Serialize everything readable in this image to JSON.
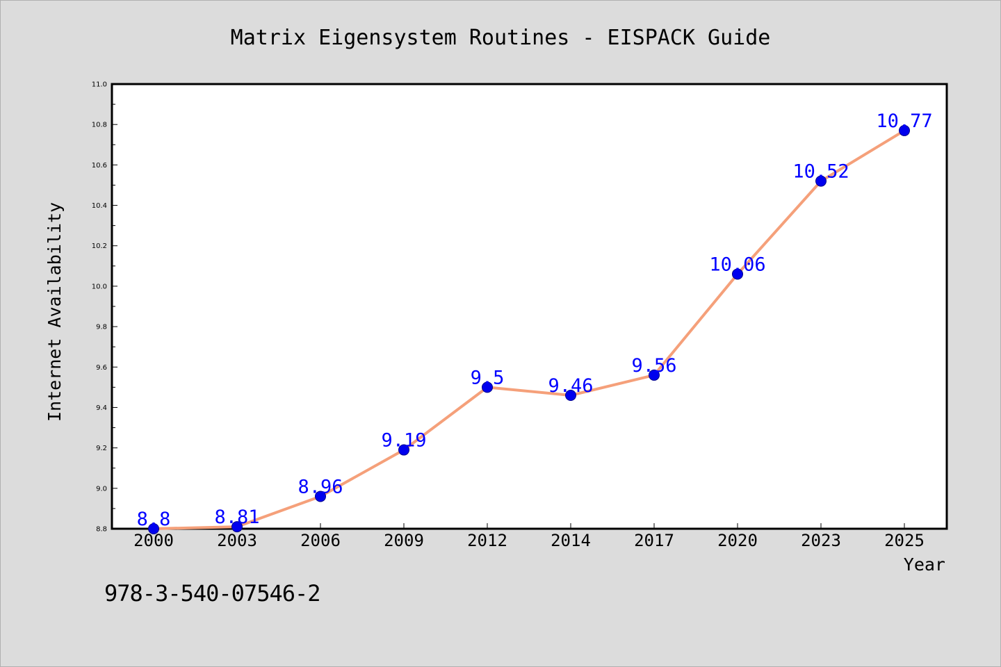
{
  "chart_data": {
    "type": "line",
    "title": "Matrix Eigensystem Routines - EISPACK Guide",
    "xlabel": "Year",
    "ylabel": "Internet Availability",
    "categories": [
      "2000",
      "2003",
      "2006",
      "2009",
      "2012",
      "2014",
      "2017",
      "2020",
      "2023",
      "2025"
    ],
    "values": [
      8.8,
      8.81,
      8.96,
      9.19,
      9.5,
      9.46,
      9.56,
      10.06,
      10.52,
      10.77
    ],
    "data_labels": [
      "8.8",
      "8.81",
      "8.96",
      "9.19",
      "9.5",
      "9.46",
      "9.56",
      "10.06",
      "10.52",
      "10.77"
    ],
    "ylim": [
      8.8,
      11.0
    ],
    "yticks": [
      "8.8",
      "9.0",
      "9.2",
      "9.4",
      "9.6",
      "9.8",
      "10.0",
      "10.2",
      "10.4",
      "10.6",
      "10.8",
      "11.0"
    ],
    "grid": false,
    "line_color": "#f5a07a",
    "marker_color": "#0000ee",
    "label_color": "#0000ff"
  },
  "footer": {
    "isbn": "978-3-540-07546-2"
  }
}
